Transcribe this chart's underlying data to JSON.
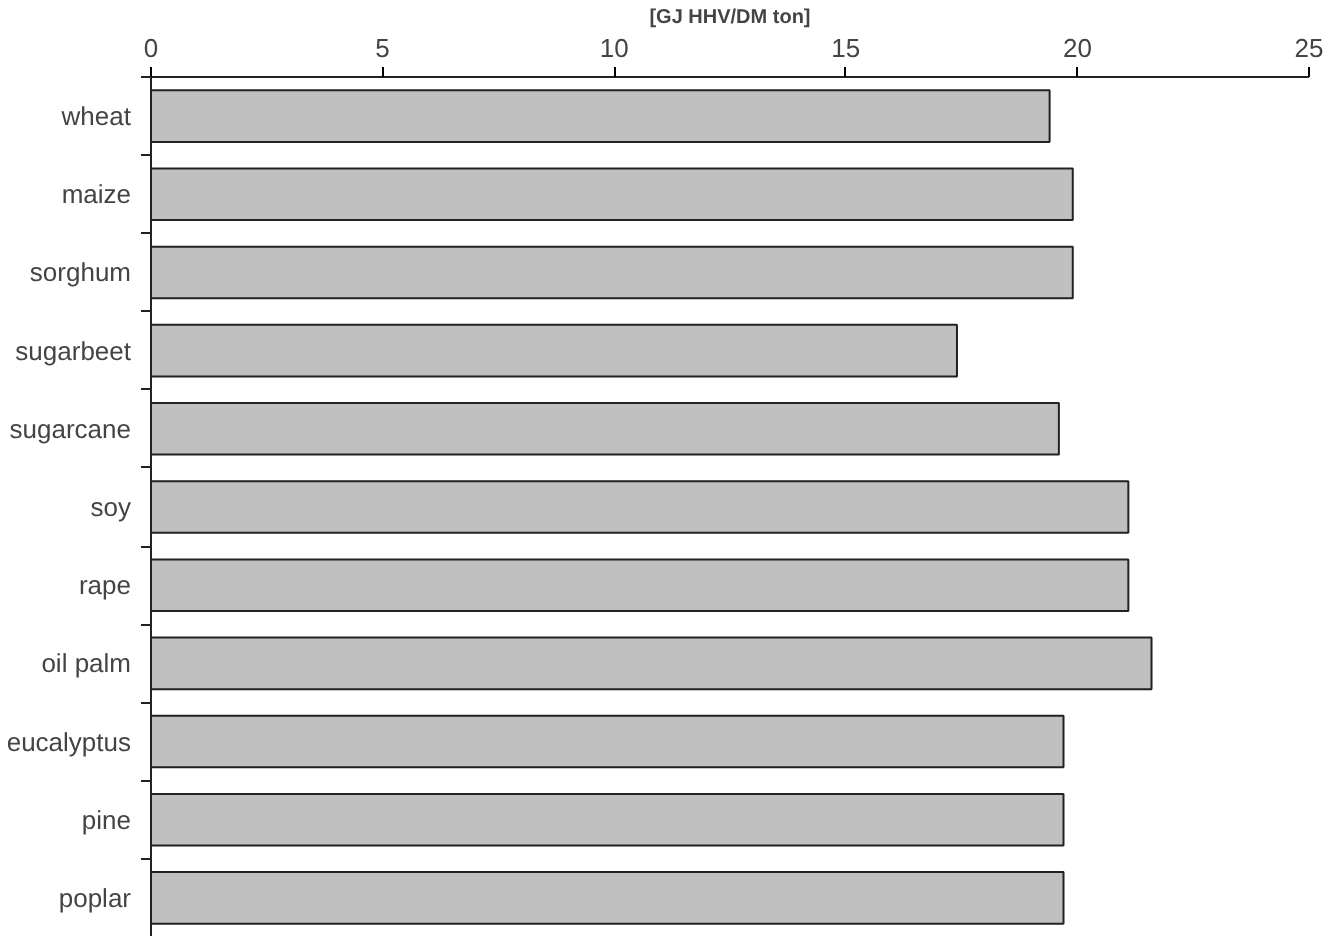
{
  "chart_data": {
    "type": "bar",
    "orientation": "horizontal",
    "xlabel": "[GJ HHV/DM ton]",
    "categories": [
      "wheat",
      "maize",
      "sorghum",
      "sugarbeet",
      "sugarcane",
      "soy",
      "rape",
      "oil palm",
      "eucalyptus",
      "pine",
      "poplar"
    ],
    "values": [
      19.4,
      19.9,
      19.9,
      17.4,
      19.6,
      21.1,
      21.1,
      21.6,
      19.7,
      19.7,
      19.7
    ],
    "color": "#c0c0c0",
    "xlim": [
      0,
      25
    ],
    "xticks": [
      0,
      5,
      10,
      15,
      20,
      25
    ],
    "grid": false
  }
}
